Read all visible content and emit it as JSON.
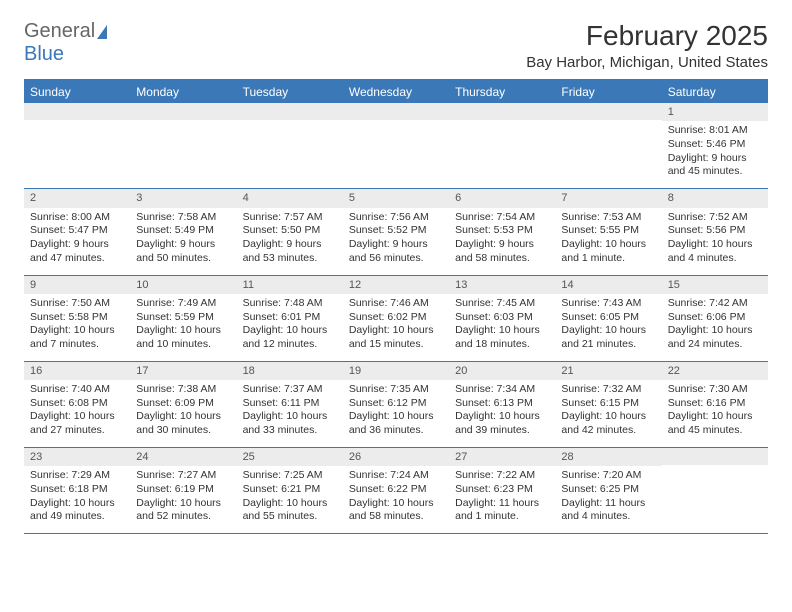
{
  "logo": {
    "part1": "General",
    "part2": "Blue"
  },
  "title": "February 2025",
  "location": "Bay Harbor, Michigan, United States",
  "dayNames": [
    "Sunday",
    "Monday",
    "Tuesday",
    "Wednesday",
    "Thursday",
    "Friday",
    "Saturday"
  ],
  "colors": {
    "accent": "#3b78b8",
    "header_bg": "#3b78b8",
    "header_text": "#ffffff",
    "daynum_bg": "#ececec",
    "text": "#333333",
    "border": "#3b78b8"
  },
  "typography": {
    "title_fontsize": 28,
    "location_fontsize": 15,
    "dayname_fontsize": 12,
    "cell_fontsize": 10.5
  },
  "weeks": [
    [
      null,
      null,
      null,
      null,
      null,
      null,
      {
        "n": "1",
        "sunrise": "Sunrise: 8:01 AM",
        "sunset": "Sunset: 5:46 PM",
        "daylight": "Daylight: 9 hours and 45 minutes."
      }
    ],
    [
      {
        "n": "2",
        "sunrise": "Sunrise: 8:00 AM",
        "sunset": "Sunset: 5:47 PM",
        "daylight": "Daylight: 9 hours and 47 minutes."
      },
      {
        "n": "3",
        "sunrise": "Sunrise: 7:58 AM",
        "sunset": "Sunset: 5:49 PM",
        "daylight": "Daylight: 9 hours and 50 minutes."
      },
      {
        "n": "4",
        "sunrise": "Sunrise: 7:57 AM",
        "sunset": "Sunset: 5:50 PM",
        "daylight": "Daylight: 9 hours and 53 minutes."
      },
      {
        "n": "5",
        "sunrise": "Sunrise: 7:56 AM",
        "sunset": "Sunset: 5:52 PM",
        "daylight": "Daylight: 9 hours and 56 minutes."
      },
      {
        "n": "6",
        "sunrise": "Sunrise: 7:54 AM",
        "sunset": "Sunset: 5:53 PM",
        "daylight": "Daylight: 9 hours and 58 minutes."
      },
      {
        "n": "7",
        "sunrise": "Sunrise: 7:53 AM",
        "sunset": "Sunset: 5:55 PM",
        "daylight": "Daylight: 10 hours and 1 minute."
      },
      {
        "n": "8",
        "sunrise": "Sunrise: 7:52 AM",
        "sunset": "Sunset: 5:56 PM",
        "daylight": "Daylight: 10 hours and 4 minutes."
      }
    ],
    [
      {
        "n": "9",
        "sunrise": "Sunrise: 7:50 AM",
        "sunset": "Sunset: 5:58 PM",
        "daylight": "Daylight: 10 hours and 7 minutes."
      },
      {
        "n": "10",
        "sunrise": "Sunrise: 7:49 AM",
        "sunset": "Sunset: 5:59 PM",
        "daylight": "Daylight: 10 hours and 10 minutes."
      },
      {
        "n": "11",
        "sunrise": "Sunrise: 7:48 AM",
        "sunset": "Sunset: 6:01 PM",
        "daylight": "Daylight: 10 hours and 12 minutes."
      },
      {
        "n": "12",
        "sunrise": "Sunrise: 7:46 AM",
        "sunset": "Sunset: 6:02 PM",
        "daylight": "Daylight: 10 hours and 15 minutes."
      },
      {
        "n": "13",
        "sunrise": "Sunrise: 7:45 AM",
        "sunset": "Sunset: 6:03 PM",
        "daylight": "Daylight: 10 hours and 18 minutes."
      },
      {
        "n": "14",
        "sunrise": "Sunrise: 7:43 AM",
        "sunset": "Sunset: 6:05 PM",
        "daylight": "Daylight: 10 hours and 21 minutes."
      },
      {
        "n": "15",
        "sunrise": "Sunrise: 7:42 AM",
        "sunset": "Sunset: 6:06 PM",
        "daylight": "Daylight: 10 hours and 24 minutes."
      }
    ],
    [
      {
        "n": "16",
        "sunrise": "Sunrise: 7:40 AM",
        "sunset": "Sunset: 6:08 PM",
        "daylight": "Daylight: 10 hours and 27 minutes."
      },
      {
        "n": "17",
        "sunrise": "Sunrise: 7:38 AM",
        "sunset": "Sunset: 6:09 PM",
        "daylight": "Daylight: 10 hours and 30 minutes."
      },
      {
        "n": "18",
        "sunrise": "Sunrise: 7:37 AM",
        "sunset": "Sunset: 6:11 PM",
        "daylight": "Daylight: 10 hours and 33 minutes."
      },
      {
        "n": "19",
        "sunrise": "Sunrise: 7:35 AM",
        "sunset": "Sunset: 6:12 PM",
        "daylight": "Daylight: 10 hours and 36 minutes."
      },
      {
        "n": "20",
        "sunrise": "Sunrise: 7:34 AM",
        "sunset": "Sunset: 6:13 PM",
        "daylight": "Daylight: 10 hours and 39 minutes."
      },
      {
        "n": "21",
        "sunrise": "Sunrise: 7:32 AM",
        "sunset": "Sunset: 6:15 PM",
        "daylight": "Daylight: 10 hours and 42 minutes."
      },
      {
        "n": "22",
        "sunrise": "Sunrise: 7:30 AM",
        "sunset": "Sunset: 6:16 PM",
        "daylight": "Daylight: 10 hours and 45 minutes."
      }
    ],
    [
      {
        "n": "23",
        "sunrise": "Sunrise: 7:29 AM",
        "sunset": "Sunset: 6:18 PM",
        "daylight": "Daylight: 10 hours and 49 minutes."
      },
      {
        "n": "24",
        "sunrise": "Sunrise: 7:27 AM",
        "sunset": "Sunset: 6:19 PM",
        "daylight": "Daylight: 10 hours and 52 minutes."
      },
      {
        "n": "25",
        "sunrise": "Sunrise: 7:25 AM",
        "sunset": "Sunset: 6:21 PM",
        "daylight": "Daylight: 10 hours and 55 minutes."
      },
      {
        "n": "26",
        "sunrise": "Sunrise: 7:24 AM",
        "sunset": "Sunset: 6:22 PM",
        "daylight": "Daylight: 10 hours and 58 minutes."
      },
      {
        "n": "27",
        "sunrise": "Sunrise: 7:22 AM",
        "sunset": "Sunset: 6:23 PM",
        "daylight": "Daylight: 11 hours and 1 minute."
      },
      {
        "n": "28",
        "sunrise": "Sunrise: 7:20 AM",
        "sunset": "Sunset: 6:25 PM",
        "daylight": "Daylight: 11 hours and 4 minutes."
      },
      null
    ]
  ]
}
